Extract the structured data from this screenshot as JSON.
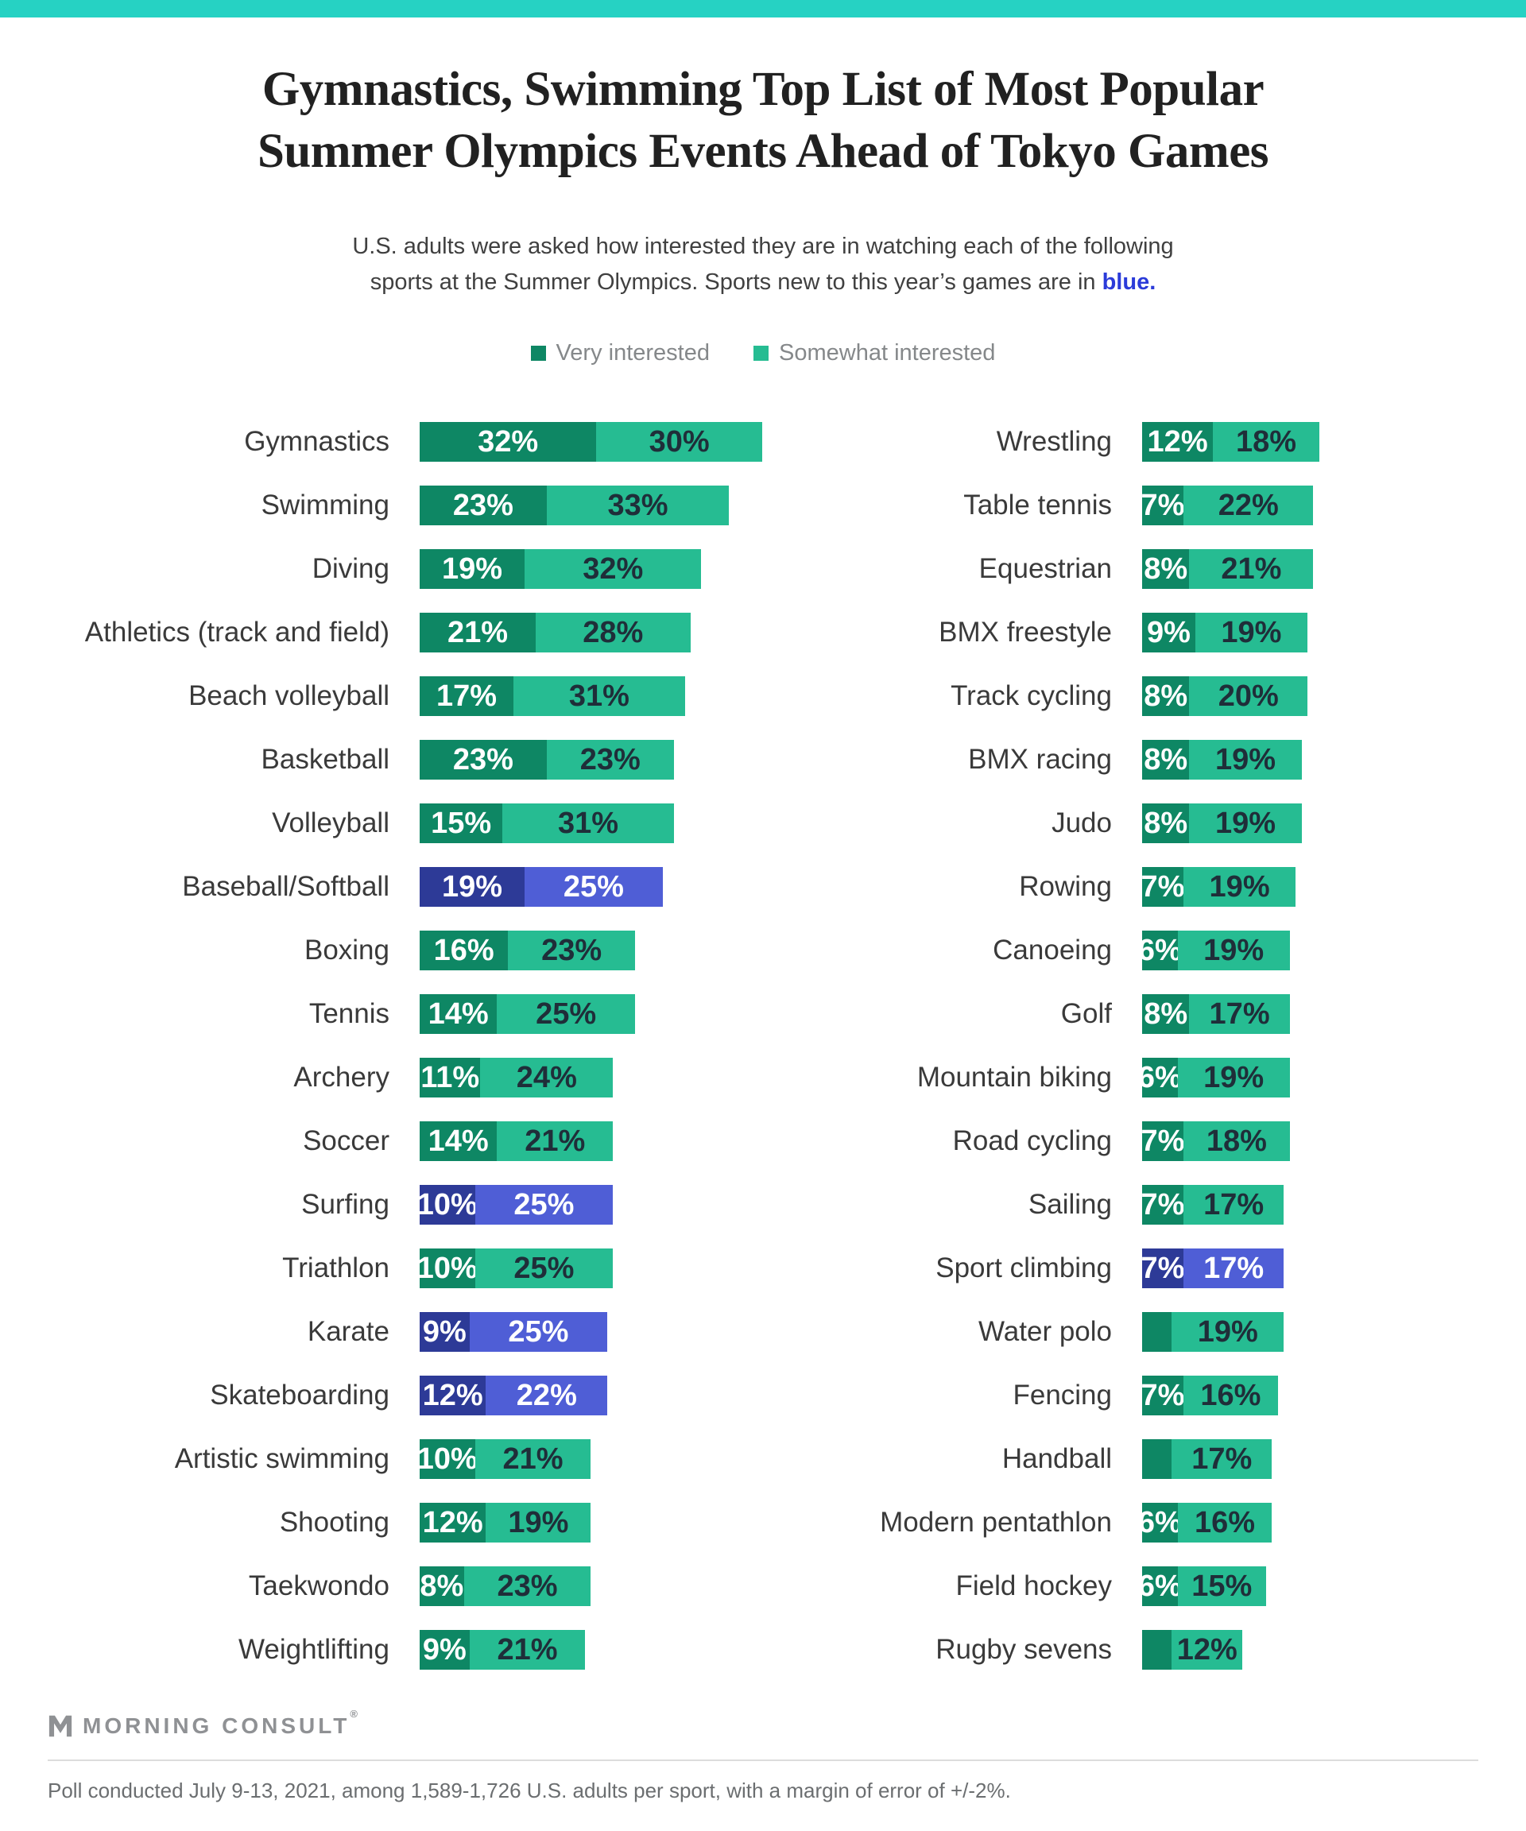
{
  "colors": {
    "teal_bar": "#26d2c3",
    "green_dark": "#0e8764",
    "green_light": "#26bc92",
    "blue_dark": "#2d3a97",
    "blue_light": "#4f5ed6",
    "value_dark_text": "#1f2e39",
    "title_text": "#212121",
    "subtitle_text": "#404040",
    "blue_word": "#2b3bd9",
    "label_text": "#3a3a3a",
    "legend_text": "#85888a",
    "logo_gray": "#8f9194",
    "divider": "#dcdcdc",
    "footer_text": "#6b6e70"
  },
  "header": {
    "title_line1": "Gymnastics, Swimming Top List of Most Popular",
    "title_line2": "Summer Olympics Events Ahead of Tokyo Games",
    "subtitle_line1": "U.S. adults were asked how interested they are in watching each of the following",
    "subtitle_line2_prefix": "sports at the Summer Olympics. Sports new to this year’s games are in ",
    "subtitle_line2_highlight": "blue",
    "subtitle_line2_suffix": "."
  },
  "legend": {
    "very_label": "Very interested",
    "somewhat_label": "Somewhat interested"
  },
  "chart_data": {
    "type": "bar",
    "orientation": "horizontal-stacked",
    "unit": "%",
    "series_names": [
      "Very interested",
      "Somewhat interested"
    ],
    "note": "Rows flagged new:true are shown in blue (sports new to this year's games). Null 'very' values have no visible data label in the chart.",
    "columns": {
      "left": {
        "rows": [
          {
            "label": "Gymnastics",
            "very": 32,
            "somewhat": 30,
            "new": false
          },
          {
            "label": "Swimming",
            "very": 23,
            "somewhat": 33,
            "new": false
          },
          {
            "label": "Diving",
            "very": 19,
            "somewhat": 32,
            "new": false
          },
          {
            "label": "Athletics (track and field)",
            "very": 21,
            "somewhat": 28,
            "new": false
          },
          {
            "label": "Beach volleyball",
            "very": 17,
            "somewhat": 31,
            "new": false
          },
          {
            "label": "Basketball",
            "very": 23,
            "somewhat": 23,
            "new": false
          },
          {
            "label": "Volleyball",
            "very": 15,
            "somewhat": 31,
            "new": false
          },
          {
            "label": "Baseball/Softball",
            "very": 19,
            "somewhat": 25,
            "new": true
          },
          {
            "label": "Boxing",
            "very": 16,
            "somewhat": 23,
            "new": false
          },
          {
            "label": "Tennis",
            "very": 14,
            "somewhat": 25,
            "new": false
          },
          {
            "label": "Archery",
            "very": 11,
            "somewhat": 24,
            "new": false
          },
          {
            "label": "Soccer",
            "very": 14,
            "somewhat": 21,
            "new": false
          },
          {
            "label": "Surfing",
            "very": 10,
            "somewhat": 25,
            "new": true
          },
          {
            "label": "Triathlon",
            "very": 10,
            "somewhat": 25,
            "new": false
          },
          {
            "label": "Karate",
            "very": 9,
            "somewhat": 25,
            "new": true
          },
          {
            "label": "Skateboarding",
            "very": 12,
            "somewhat": 22,
            "new": true
          },
          {
            "label": "Artistic swimming",
            "very": 10,
            "somewhat": 21,
            "new": false
          },
          {
            "label": "Shooting",
            "very": 12,
            "somewhat": 19,
            "new": false
          },
          {
            "label": "Taekwondo",
            "very": 8,
            "somewhat": 23,
            "new": false
          },
          {
            "label": "Weightlifting",
            "very": 9,
            "somewhat": 21,
            "new": false
          }
        ]
      },
      "right": {
        "rows": [
          {
            "label": "Wrestling",
            "very": 12,
            "somewhat": 18,
            "new": false
          },
          {
            "label": "Table tennis",
            "very": 7,
            "somewhat": 22,
            "new": false
          },
          {
            "label": "Equestrian",
            "very": 8,
            "somewhat": 21,
            "new": false
          },
          {
            "label": "BMX freestyle",
            "very": 9,
            "somewhat": 19,
            "new": false
          },
          {
            "label": "Track cycling",
            "very": 8,
            "somewhat": 20,
            "new": false
          },
          {
            "label": "BMX racing",
            "very": 8,
            "somewhat": 19,
            "new": false
          },
          {
            "label": "Judo",
            "very": 8,
            "somewhat": 19,
            "new": false
          },
          {
            "label": "Rowing",
            "very": 7,
            "somewhat": 19,
            "new": false
          },
          {
            "label": "Canoeing",
            "very": 6,
            "somewhat": 19,
            "new": false
          },
          {
            "label": "Golf",
            "very": 8,
            "somewhat": 17,
            "new": false
          },
          {
            "label": "Mountain biking",
            "very": 6,
            "somewhat": 19,
            "new": false
          },
          {
            "label": "Road cycling",
            "very": 7,
            "somewhat": 18,
            "new": false
          },
          {
            "label": "Sailing",
            "very": 7,
            "somewhat": 17,
            "new": false
          },
          {
            "label": "Sport climbing",
            "very": 7,
            "somewhat": 17,
            "new": true
          },
          {
            "label": "Water polo",
            "very": null,
            "somewhat": 19,
            "new": false
          },
          {
            "label": "Fencing",
            "very": 7,
            "somewhat": 16,
            "new": false
          },
          {
            "label": "Handball",
            "very": null,
            "somewhat": 17,
            "new": false
          },
          {
            "label": "Modern pentathlon",
            "very": 6,
            "somewhat": 16,
            "new": false
          },
          {
            "label": "Field hockey",
            "very": 6,
            "somewhat": 15,
            "new": false
          },
          {
            "label": "Rugby sevens",
            "very": null,
            "somewhat": 12,
            "new": false
          }
        ]
      }
    }
  },
  "footer": {
    "logo_text": "MORNING CONSULT",
    "logo_reg": "®",
    "note": "Poll conducted July 9-13, 2021, among 1,589-1,726 U.S. adults per sport, with a margin of error of +/-2%."
  }
}
